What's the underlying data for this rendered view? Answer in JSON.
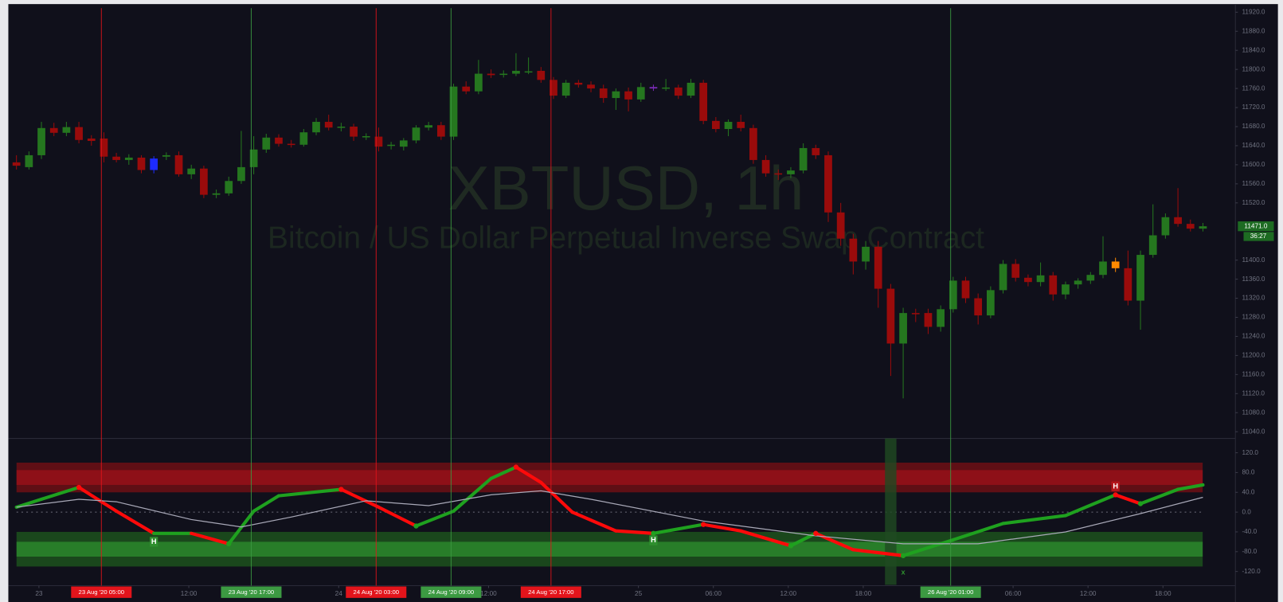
{
  "chart_data": {
    "type": "candlestick",
    "title": "XBTUSD, 1h",
    "subtitle": "Bitcoin / US Dollar Perpetual Inverse Swap Contract",
    "up_color": "#25771f",
    "down_color": "#9a0b0b",
    "highlight_candles": [
      {
        "index": 11,
        "color": "#1d2bff"
      },
      {
        "index": 51,
        "color": "#7b2bb8"
      },
      {
        "index": 88,
        "color": "#ff8a00"
      }
    ],
    "candles": [
      [
        11605,
        11620,
        11590,
        11598
      ],
      [
        11595,
        11628,
        11590,
        11620
      ],
      [
        11620,
        11690,
        11612,
        11677
      ],
      [
        11677,
        11688,
        11660,
        11667
      ],
      [
        11667,
        11690,
        11660,
        11679
      ],
      [
        11679,
        11690,
        11645,
        11652
      ],
      [
        11655,
        11662,
        11640,
        11650
      ],
      [
        11655,
        11668,
        11605,
        11617
      ],
      [
        11617,
        11625,
        11605,
        11610
      ],
      [
        11610,
        11622,
        11600,
        11615
      ],
      [
        11615,
        11620,
        11582,
        11589
      ],
      [
        11613,
        11618,
        11582,
        11589
      ],
      [
        11617,
        11626,
        11610,
        11620
      ],
      [
        11620,
        11628,
        11575,
        11580
      ],
      [
        11580,
        11600,
        11570,
        11592
      ],
      [
        11592,
        11598,
        11530,
        11537
      ],
      [
        11537,
        11548,
        11530,
        11540
      ],
      [
        11540,
        11575,
        11535,
        11566
      ],
      [
        11566,
        11671,
        11560,
        11595
      ],
      [
        11595,
        11660,
        11580,
        11632
      ],
      [
        11632,
        11665,
        11625,
        11657
      ],
      [
        11657,
        11664,
        11638,
        11644
      ],
      [
        11644,
        11652,
        11636,
        11642
      ],
      [
        11642,
        11675,
        11638,
        11668
      ],
      [
        11668,
        11698,
        11662,
        11690
      ],
      [
        11690,
        11705,
        11672,
        11678
      ],
      [
        11678,
        11688,
        11670,
        11680
      ],
      [
        11680,
        11686,
        11650,
        11659
      ],
      [
        11659,
        11666,
        11652,
        11660
      ],
      [
        11659,
        11678,
        11628,
        11638
      ],
      [
        11640,
        11648,
        11632,
        11642
      ],
      [
        11638,
        11656,
        11630,
        11651
      ],
      [
        11651,
        11683,
        11645,
        11678
      ],
      [
        11678,
        11690,
        11672,
        11683
      ],
      [
        11683,
        11690,
        11652,
        11659
      ],
      [
        11659,
        11770,
        11652,
        11764
      ],
      [
        11764,
        11775,
        11748,
        11754
      ],
      [
        11754,
        11820,
        11748,
        11791
      ],
      [
        11791,
        11800,
        11782,
        11788
      ],
      [
        11789,
        11798,
        11783,
        11791
      ],
      [
        11791,
        11834,
        11786,
        11797
      ],
      [
        11796,
        11825,
        11790,
        11796
      ],
      [
        11797,
        11805,
        11772,
        11778
      ],
      [
        11778,
        11784,
        11738,
        11745
      ],
      [
        11745,
        11778,
        11740,
        11772
      ],
      [
        11772,
        11778,
        11762,
        11768
      ],
      [
        11768,
        11775,
        11752,
        11760
      ],
      [
        11760,
        11768,
        11730,
        11740
      ],
      [
        11740,
        11760,
        11715,
        11754
      ],
      [
        11754,
        11762,
        11712,
        11737
      ],
      [
        11737,
        11772,
        11732,
        11763
      ],
      [
        11763,
        11768,
        11755,
        11760
      ],
      [
        11761,
        11780,
        11755,
        11762
      ],
      [
        11762,
        11768,
        11738,
        11745
      ],
      [
        11745,
        11780,
        11740,
        11772
      ],
      [
        11772,
        11778,
        11685,
        11692
      ],
      [
        11692,
        11700,
        11668,
        11675
      ],
      [
        11675,
        11695,
        11660,
        11690
      ],
      [
        11690,
        11705,
        11670,
        11677
      ],
      [
        11677,
        11684,
        11602,
        11610
      ],
      [
        11610,
        11620,
        11575,
        11582
      ],
      [
        11582,
        11590,
        11568,
        11580
      ],
      [
        11580,
        11595,
        11572,
        11588
      ],
      [
        11588,
        11645,
        11582,
        11635
      ],
      [
        11635,
        11642,
        11612,
        11620
      ],
      [
        11620,
        11628,
        11480,
        11500
      ],
      [
        11500,
        11520,
        11430,
        11445
      ],
      [
        11445,
        11455,
        11370,
        11397
      ],
      [
        11397,
        11440,
        11380,
        11428
      ],
      [
        11428,
        11440,
        11300,
        11340
      ],
      [
        11340,
        11350,
        11157,
        11225
      ],
      [
        11225,
        11300,
        11110,
        11289
      ],
      [
        11289,
        11298,
        11270,
        11288
      ],
      [
        11289,
        11298,
        11245,
        11260
      ],
      [
        11260,
        11305,
        11250,
        11297
      ],
      [
        11297,
        11365,
        11290,
        11357
      ],
      [
        11357,
        11365,
        11310,
        11320
      ],
      [
        11320,
        11330,
        11265,
        11284
      ],
      [
        11284,
        11345,
        11278,
        11337
      ],
      [
        11337,
        11400,
        11330,
        11392
      ],
      [
        11392,
        11402,
        11355,
        11363
      ],
      [
        11363,
        11370,
        11345,
        11354
      ],
      [
        11354,
        11395,
        11345,
        11368
      ],
      [
        11368,
        11375,
        11315,
        11328
      ],
      [
        11328,
        11355,
        11318,
        11349
      ],
      [
        11349,
        11362,
        11340,
        11357
      ],
      [
        11357,
        11375,
        11350,
        11369
      ],
      [
        11369,
        11450,
        11362,
        11397
      ],
      [
        11397,
        11405,
        11375,
        11383
      ],
      [
        11383,
        11420,
        11305,
        11315
      ],
      [
        11315,
        11420,
        11254,
        11411
      ],
      [
        11411,
        11517,
        11405,
        11452
      ],
      [
        11452,
        11498,
        11445,
        11490
      ],
      [
        11490,
        11551,
        11470,
        11476
      ],
      [
        11476,
        11485,
        11460,
        11466
      ],
      [
        11466,
        11478,
        11460,
        11471
      ]
    ],
    "xlim": [
      -0.65,
      97.6
    ],
    "ylim": [
      11026,
      11937
    ],
    "yticks": [
      {
        "value": 11920,
        "label": "11920.0"
      },
      {
        "value": 11880,
        "label": "11880.0"
      },
      {
        "value": 11840,
        "label": "11840.0"
      },
      {
        "value": 11800,
        "label": "11800.0"
      },
      {
        "value": 11760,
        "label": "11760.0"
      },
      {
        "value": 11720,
        "label": "11720.0"
      },
      {
        "value": 11680,
        "label": "11680.0"
      },
      {
        "value": 11640,
        "label": "11640.0"
      },
      {
        "value": 11600,
        "label": "11600.0"
      },
      {
        "value": 11560,
        "label": "11560.0"
      },
      {
        "value": 11520,
        "label": "11520.0"
      },
      {
        "value": 11400,
        "label": "11400.0"
      },
      {
        "value": 11360,
        "label": "11360.0"
      },
      {
        "value": 11320,
        "label": "11320.0"
      },
      {
        "value": 11280,
        "label": "11280.0"
      },
      {
        "value": 11240,
        "label": "11240.0"
      },
      {
        "value": 11200,
        "label": "11200.0"
      },
      {
        "value": 11160,
        "label": "11160.0"
      },
      {
        "value": 11120,
        "label": "11120.0"
      },
      {
        "value": 11080,
        "label": "11080.0"
      },
      {
        "value": 11040,
        "label": "11040.0"
      }
    ],
    "xticks": [
      {
        "value": 1.8,
        "label": "23"
      },
      {
        "value": 13.8,
        "label": "12:00"
      },
      {
        "value": 25.8,
        "label": "24"
      },
      {
        "value": 37.8,
        "label": "12:00"
      },
      {
        "value": 49.8,
        "label": "25"
      },
      {
        "value": 55.8,
        "label": "06:00"
      },
      {
        "value": 61.8,
        "label": "12:00"
      },
      {
        "value": 67.8,
        "label": "18:00"
      },
      {
        "value": 79.8,
        "label": "06:00"
      },
      {
        "value": 85.8,
        "label": "12:00"
      },
      {
        "value": 91.8,
        "label": "18:00"
      }
    ],
    "last_price": {
      "value": 11471,
      "label": "11471.0"
    },
    "countdown": "36:27",
    "signals": [
      {
        "x": 6.8,
        "label": "23 Aug '20   05:00",
        "color": "#e3141b"
      },
      {
        "x": 18.8,
        "label": "23 Aug '20   17:00",
        "color": "#3c9a42"
      },
      {
        "x": 28.8,
        "label": "24 Aug '20   03:00",
        "color": "#e3141b"
      },
      {
        "x": 34.8,
        "label": "24 Aug '20   09:00",
        "color": "#3c9a42"
      },
      {
        "x": 42.8,
        "label": "24 Aug '20   17:00",
        "color": "#e3141b"
      },
      {
        "x": 74.8,
        "label": "26 Aug '20   01:00",
        "color": "#3c9a42"
      }
    ],
    "oscillator": {
      "ylim": [
        -147,
        149
      ],
      "yticks": [
        {
          "value": 120,
          "label": "120.0"
        },
        {
          "value": 80,
          "label": "80.0"
        },
        {
          "value": 40,
          "label": "40.0"
        },
        {
          "value": 0,
          "label": "0.0"
        },
        {
          "value": -40,
          "label": "-40.0"
        },
        {
          "value": -80,
          "label": "-80.0"
        },
        {
          "value": -120,
          "label": "-120.0"
        }
      ],
      "upper_band": [
        40,
        100
      ],
      "upper_inner": [
        55,
        85
      ],
      "lower_band": [
        -110,
        -40
      ],
      "lower_inner": [
        -90,
        -60
      ],
      "band_colors": {
        "upper": "#7a0f14",
        "upper_inner": "#9e1219",
        "lower": "#1d5a1d",
        "lower_inner": "#2e8f2e"
      },
      "rising_color": "#1fa11f",
      "falling_color": "#ff0a0a",
      "signal_color": "#a9a9b8",
      "zone_x": 70,
      "x": [
        0,
        2,
        5,
        8,
        11,
        14,
        17,
        19,
        21,
        26,
        29,
        32,
        35,
        38,
        40,
        42,
        44.5,
        48,
        51,
        55,
        58,
        62,
        64,
        67,
        71,
        75,
        79,
        84,
        88,
        90,
        93,
        95
      ],
      "values": [
        10,
        26,
        50,
        2,
        -43,
        -43,
        -64,
        2,
        33,
        46,
        10,
        -28,
        2,
        68,
        91,
        60,
        0,
        -38,
        -43,
        -25,
        -38,
        -68,
        -43,
        -76,
        -88,
        -56,
        -23,
        -7,
        35,
        17,
        46,
        55
      ],
      "signal_x": [
        0,
        5,
        8,
        14,
        18,
        22,
        28,
        33,
        38,
        42,
        46,
        55,
        64,
        71,
        77,
        84,
        90,
        95
      ],
      "signal_values": [
        10,
        26,
        21,
        -15,
        -30,
        -10,
        23,
        13,
        35,
        43,
        26,
        -18,
        -48,
        -64,
        -64,
        -40,
        -3,
        30
      ],
      "markers": [
        {
          "x": 11,
          "y": -60,
          "label": "H",
          "color": "#2e8f2e"
        },
        {
          "x": 51,
          "y": -57,
          "label": "H",
          "color": "#2e8f2e"
        },
        {
          "x": 88,
          "y": 52,
          "label": "H",
          "color": "#b5151b"
        },
        {
          "x": 71,
          "y": -122,
          "label": "x",
          "color": "#2e8f2e"
        }
      ]
    }
  }
}
